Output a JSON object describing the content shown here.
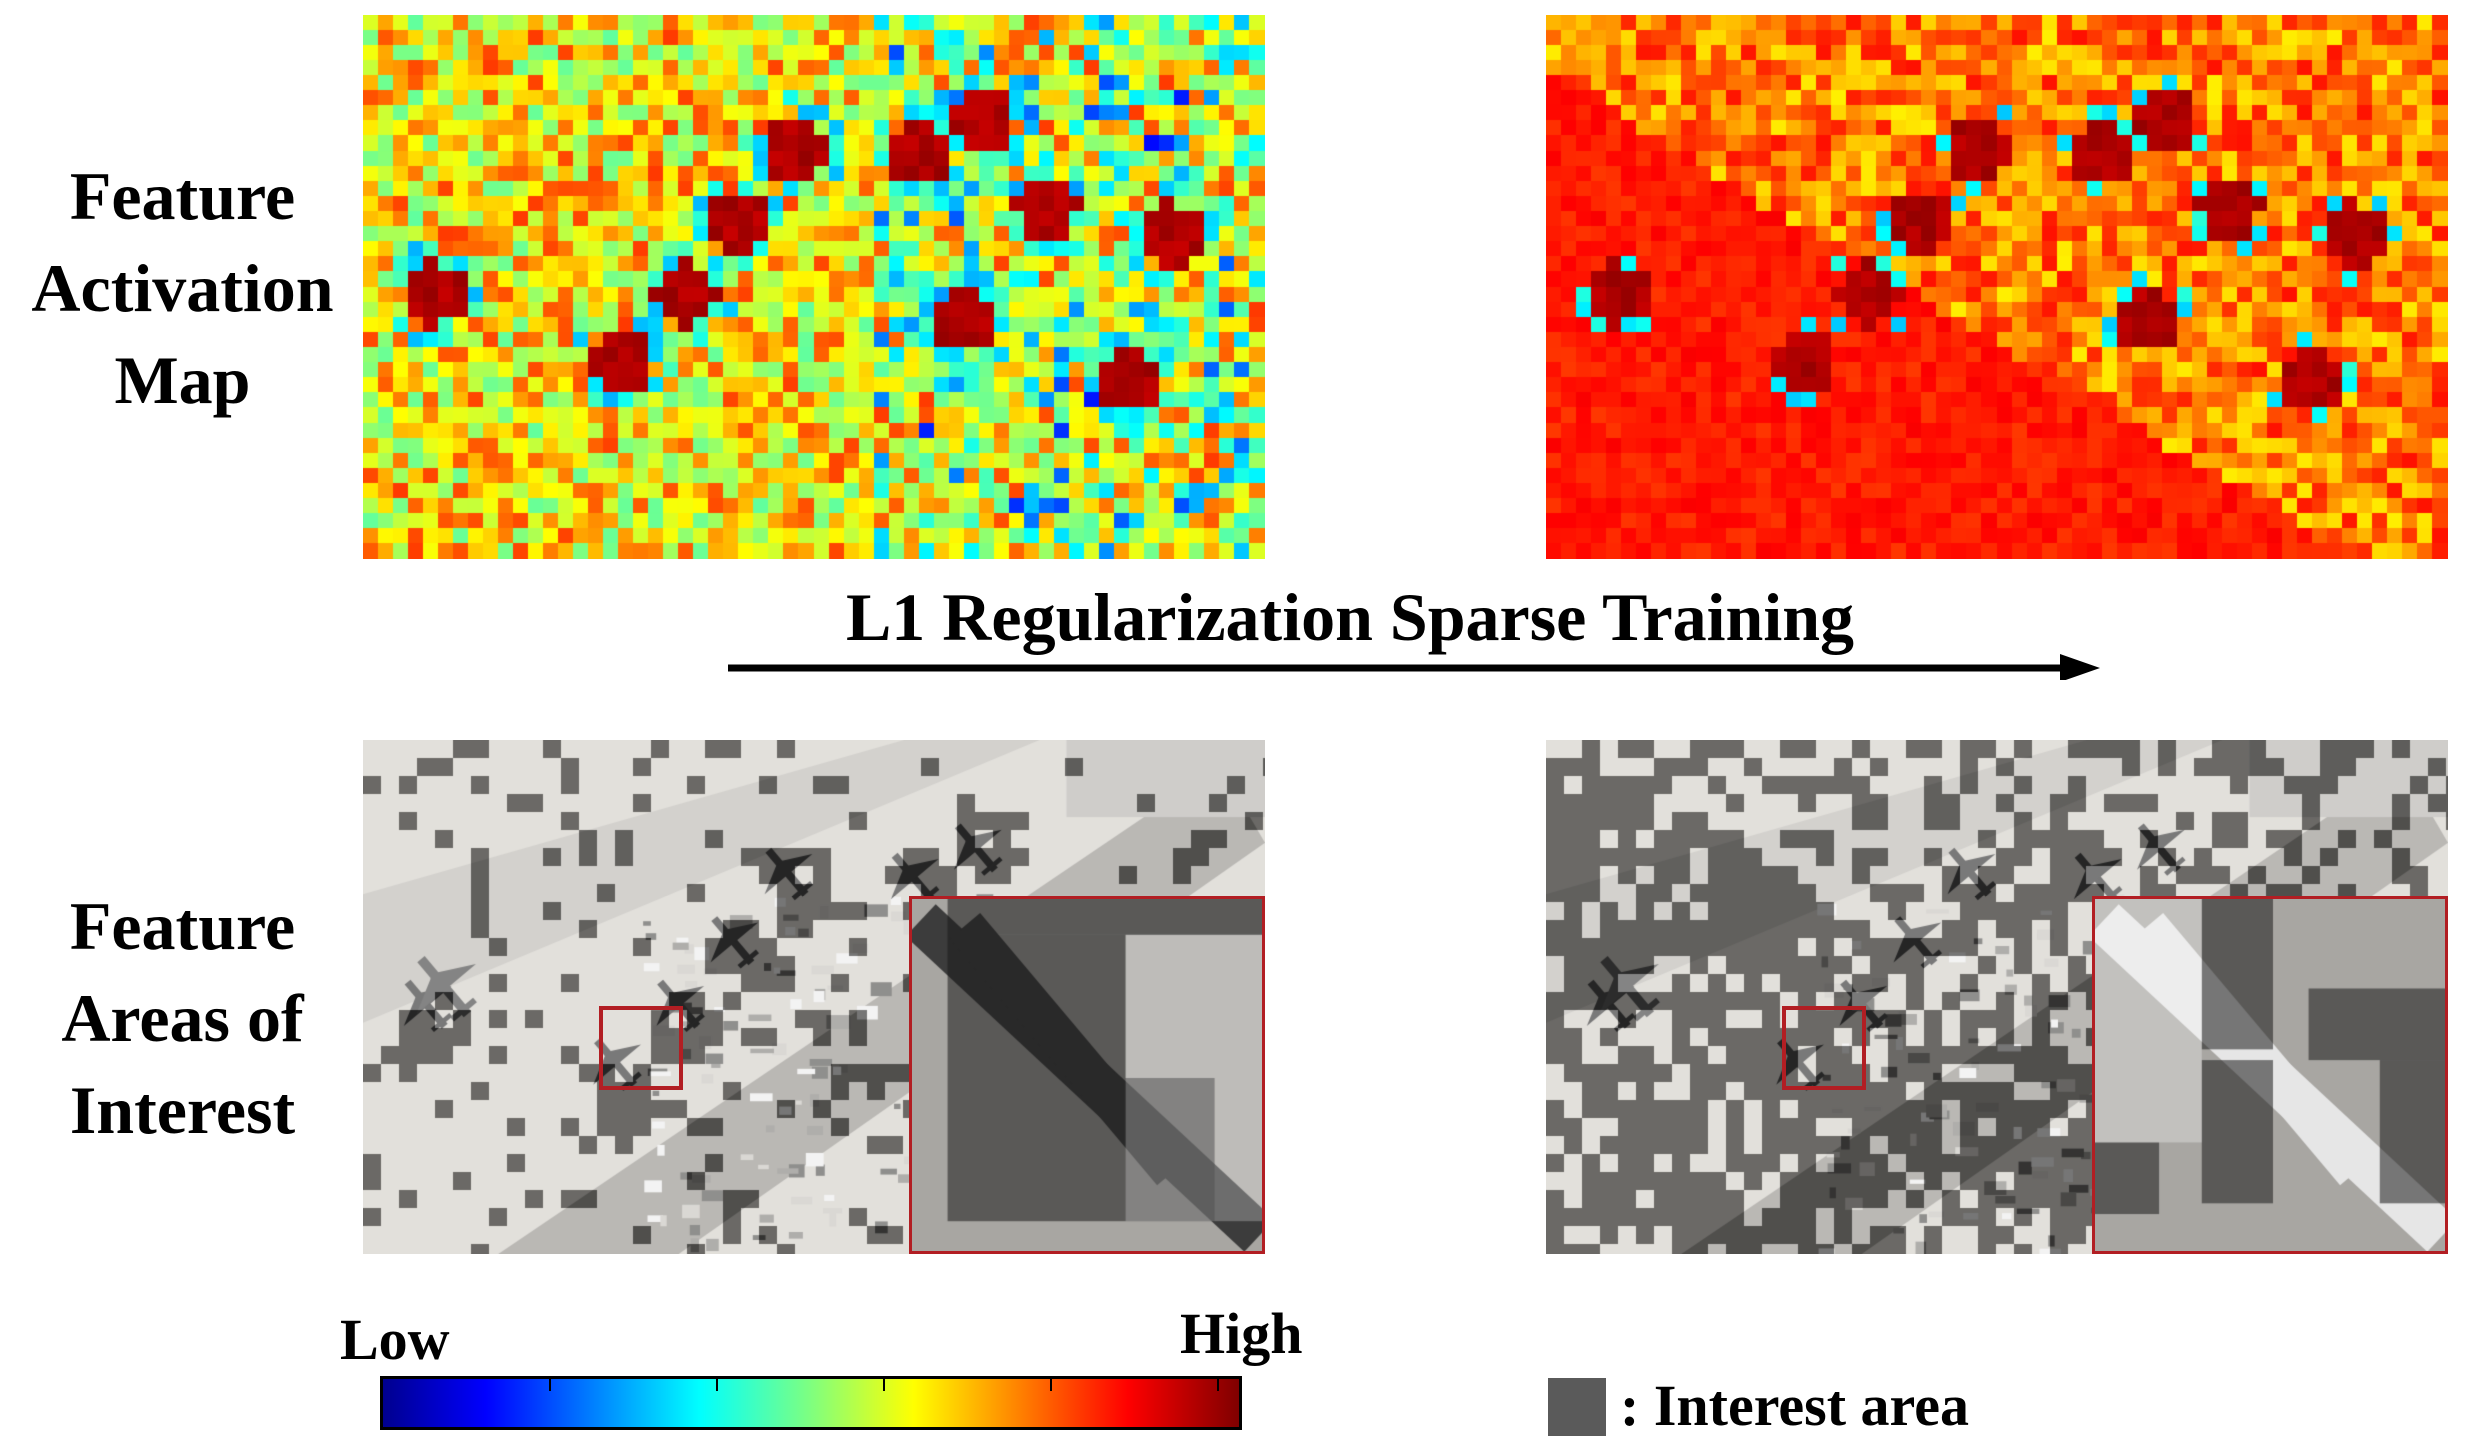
{
  "row_labels": {
    "feature_activation_map": "Feature Activation Map",
    "feature_areas_of_interest": "Feature Areas of Interest"
  },
  "arrow_label": "L1 Regularization Sparse Training",
  "colorbar": {
    "low": "Low",
    "high": "High",
    "colormap": "jet"
  },
  "legend": {
    "interest_area": ": Interest area",
    "swatch_color": "#5a5a5a"
  },
  "colors": {
    "zoom_box": "#b21e23"
  }
}
